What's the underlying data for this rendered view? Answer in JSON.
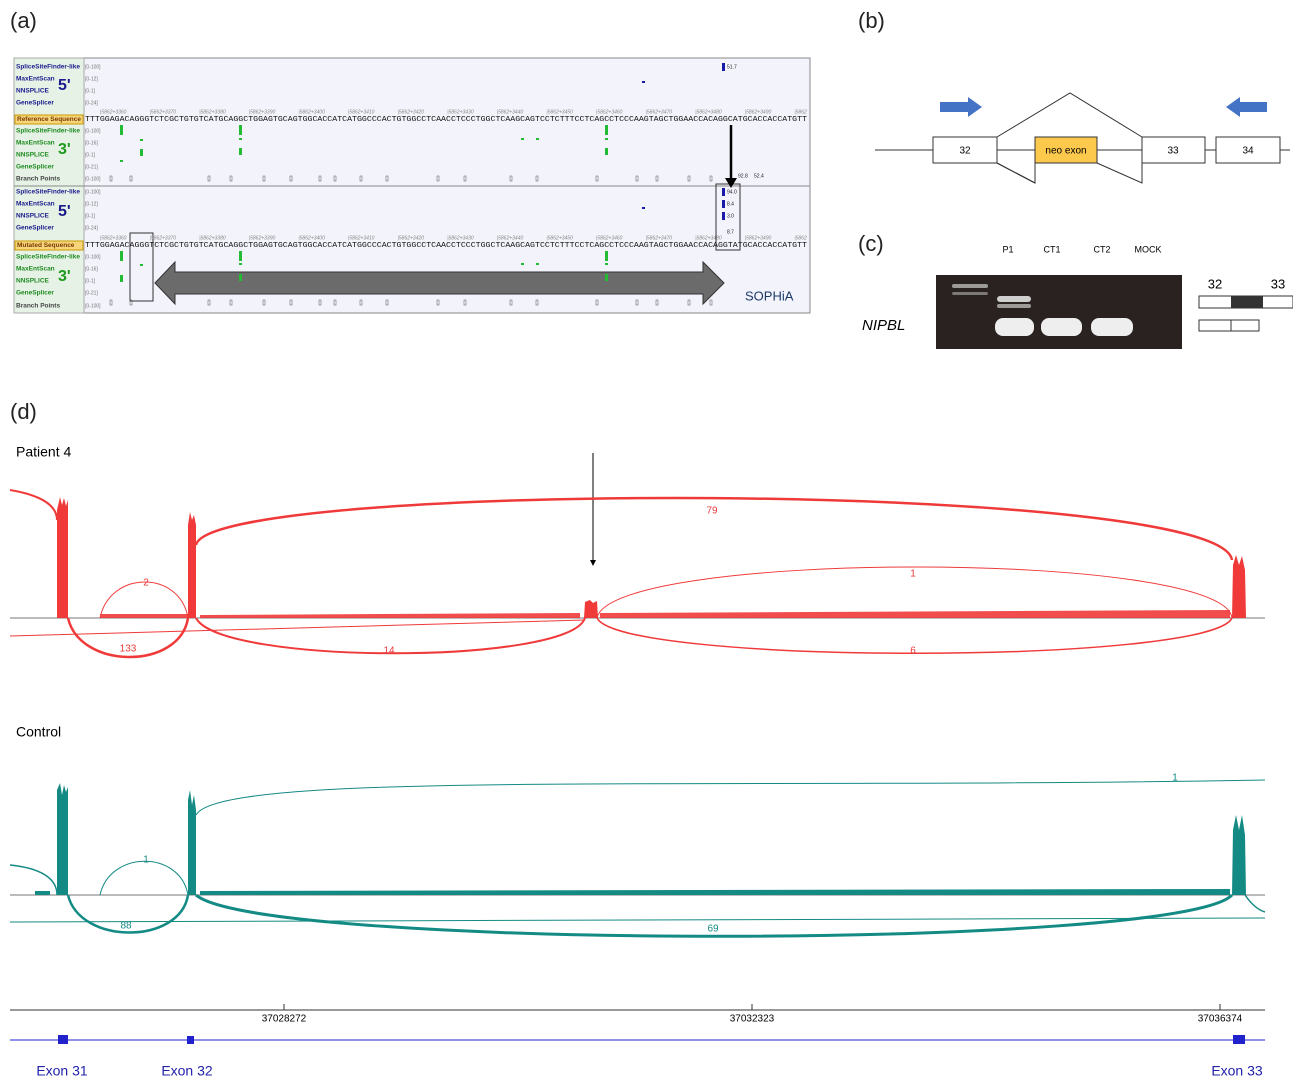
{
  "panel_a": {
    "label": "(a)",
    "tracks_top": [
      "SpliceSiteFinder-like",
      "MaxEntScan",
      "NNSPLICE",
      "GeneSplicer"
    ],
    "ranges_top": [
      "[0-100]",
      "[0-12]",
      "[0-1]",
      "[0-24]"
    ],
    "reference_label": "Reference Sequence",
    "reference_sequence": "TTTGGAGACAGGGTCTCGCTGTGTCATGCAGGCTGGAGTGCAGTGGCACCATCATGGCCCACTGTGGCCTCAACCTCCCTGGCTCAAGCAGTCCTCTTTCCTCAGCCTCCCAAGTAGCTGGAACCACAGGCATGCACCACCATGTT",
    "tracks_3p_top": [
      "SpliceSiteFinder-like",
      "MaxEntScan",
      "NNSPLICE",
      "GeneSplicer",
      "Branch Points"
    ],
    "ranges_3p_top": [
      "[0-100]",
      "[0-16]",
      "[0-1]",
      "[0-21]",
      "[0-100]"
    ],
    "tracks_bottom": [
      "SpliceSiteFinder-like",
      "MaxEntScan",
      "NNSPLICE",
      "GeneSplicer"
    ],
    "ranges_bottom": [
      "[0-100]",
      "[0-12]",
      "[0-1]",
      "[0-24]"
    ],
    "mutated_label": "Mutated Sequence",
    "mutated_sequence": "TTTGGAGACAGGGTCTCGCTGTGTCATGCAGGCTGGAGTGCAGTGGCACCATCATGGCCCACTGTGGCCTCAACCTCCCTGGCTCAAGCAGTCCTCTTTCCTCAGCCTCCCAAGTAGCTGGAACCACAGGTATGCACCACCATGTT",
    "tracks_3p_bottom": [
      "SpliceSiteFinder-like",
      "MaxEntScan",
      "NNSPLICE",
      "GeneSplicer",
      "Branch Points"
    ],
    "ranges_3p_bottom": [
      "[0-100]",
      "[0-16]",
      "[0-1]",
      "[0-21]",
      "[0-100]"
    ],
    "coordinates": [
      "|5862+3360",
      "|5862+3370",
      "|5862+3380",
      "|5862+3390",
      "|5862+3400",
      "|5862+3410",
      "|5862+3420",
      "|5862+3430",
      "|5862+3440",
      "|5862+3450",
      "|5862+3460",
      "|5862+3470",
      "|5862+3480",
      "|5862+3490",
      "|5862"
    ],
    "five_prime_top": "5'",
    "three_prime_top": "3'",
    "five_prime_bottom": "5'",
    "three_prime_bottom": "3'",
    "scores": [
      "51.7",
      "92.8",
      "52.4",
      "94.0",
      "8.4",
      "3.0",
      "8.7"
    ],
    "logo": "SOPHiA"
  },
  "panel_b": {
    "label": "(b)",
    "exons": [
      "32",
      "neo exon",
      "33",
      "34"
    ]
  },
  "panel_c": {
    "label": "(c)",
    "lanes": [
      "P1",
      "CT1",
      "CT2",
      "MOCK"
    ],
    "gene": "NIPBL",
    "exons": [
      "32",
      "33"
    ]
  },
  "panel_d": {
    "label": "(d)",
    "patient": {
      "label": "Patient 4",
      "counts": [
        "79",
        "2",
        "1",
        "133",
        "14",
        "6"
      ]
    },
    "control": {
      "label": "Control",
      "counts": [
        "1",
        "1",
        "88",
        "69"
      ]
    },
    "coordinates": [
      "37028272",
      "37032323",
      "37036374"
    ],
    "exons": [
      "Exon 31",
      "Exon 32",
      "Exon 33"
    ]
  }
}
